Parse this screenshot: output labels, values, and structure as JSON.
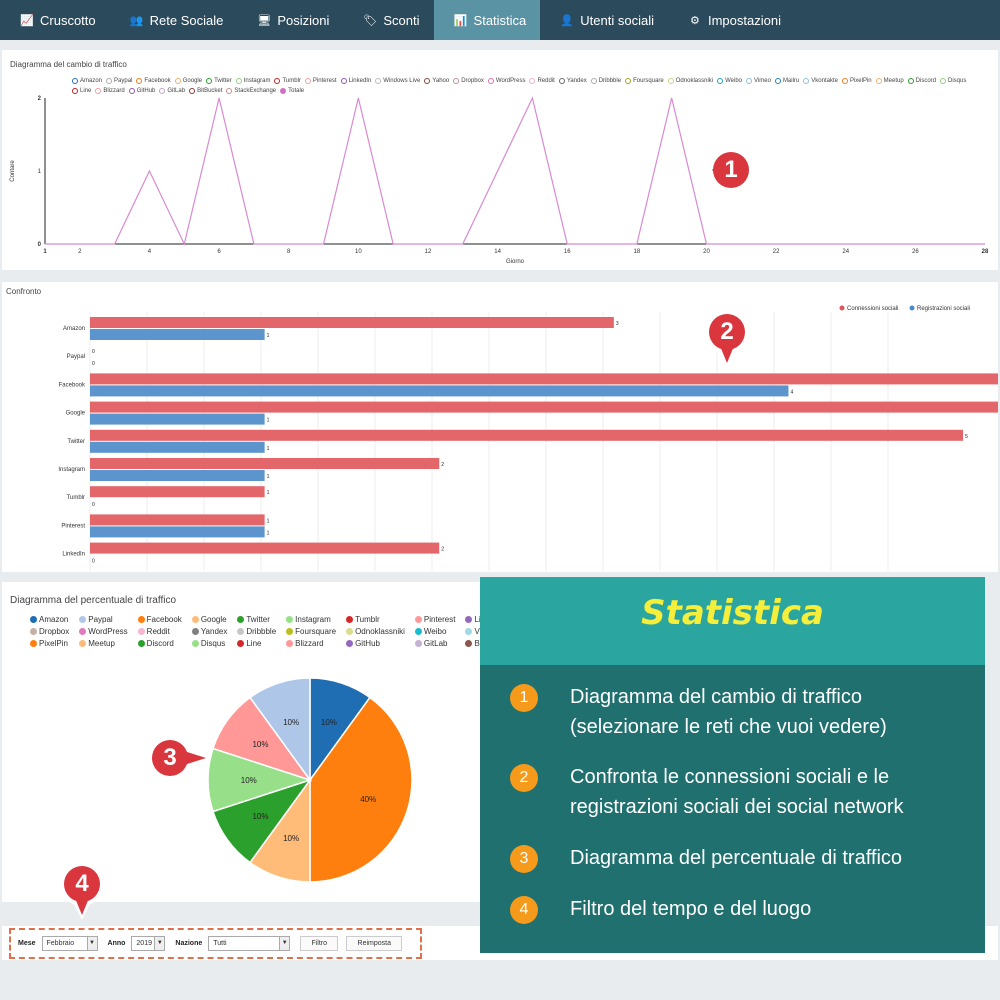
{
  "nav": {
    "items": [
      {
        "label": "Cruscotto",
        "icon": "chart-icon",
        "glyph": "📈",
        "active": false
      },
      {
        "label": "Rete Sociale",
        "icon": "users-icon",
        "glyph": "👥",
        "active": false
      },
      {
        "label": "Posizioni",
        "icon": "monitor-icon",
        "glyph": "🖥",
        "active": false
      },
      {
        "label": "Sconti",
        "icon": "tag-icon",
        "glyph": "🏷",
        "active": false
      },
      {
        "label": "Statistica",
        "icon": "bar-chart-icon",
        "glyph": "📊",
        "active": true
      },
      {
        "label": "Utenti sociali",
        "icon": "user-icon",
        "glyph": "👤",
        "active": false
      },
      {
        "label": "Impostazioni",
        "icon": "gear-icon",
        "glyph": "⚙",
        "active": false
      }
    ]
  },
  "traffic": {
    "title": "Diagramma del cambio di traffico",
    "legend": [
      "Amazon",
      "Paypal",
      "Facebook",
      "Google",
      "Twitter",
      "Instagram",
      "Tumblr",
      "Pinterest",
      "LinkedIn",
      "Windows Live",
      "Yahoo",
      "Dropbox",
      "WordPress",
      "Reddit",
      "Yandex",
      "Dribbble",
      "Foursquare",
      "Odnoklassniki",
      "Weibo",
      "Vimeo",
      "Mailru",
      "Vkontakte",
      "PixelPin",
      "Meetup",
      "Discord",
      "Disqus",
      "Line",
      "Blizzard",
      "GitHub",
      "GitLab",
      "BitBucket",
      "StackExchange",
      "Totale"
    ],
    "legend_colors": [
      "#1f6db3",
      "#aaaaaa",
      "#f07c1a",
      "#f0b070",
      "#2a9a2a",
      "#90d080",
      "#c02020",
      "#f0a0a0",
      "#8a5ab0",
      "#bbbbbb",
      "#7a4a3a",
      "#c09090",
      "#e070b0",
      "#f0b0c0",
      "#666666",
      "#aaaaaa",
      "#a0a020",
      "#d0d080",
      "#20a0c0",
      "#90c0e0",
      "#2080c0",
      "#90c0e0",
      "#f07c1a",
      "#f0b070",
      "#2a9a2a",
      "#90d080",
      "#c02020",
      "#f0a0a0",
      "#8a5ab0",
      "#c0a0d0",
      "#8a3a3a",
      "#c09090",
      "#d070c0"
    ]
  },
  "compare": {
    "title": "Confronto",
    "legend": [
      {
        "label": "Connessioni sociali",
        "color": "#e0555a"
      },
      {
        "label": "Registrazioni sociali",
        "color": "#3a80c0"
      }
    ]
  },
  "pie": {
    "title": "Diagramma del percentuale di traffico",
    "legend": [
      {
        "label": "Amazon",
        "color": "#1f6db3"
      },
      {
        "label": "Paypal",
        "color": "#aec7e8"
      },
      {
        "label": "Facebook",
        "color": "#ff7f0e"
      },
      {
        "label": "Google",
        "color": "#ffbb78"
      },
      {
        "label": "Twitter",
        "color": "#2ca02c"
      },
      {
        "label": "Instagram",
        "color": "#98df8a"
      },
      {
        "label": "Tumblr",
        "color": "#d62728"
      },
      {
        "label": "Pinterest",
        "color": "#ff9896"
      },
      {
        "label": "LinkedIn",
        "color": "#9467bd"
      },
      {
        "label": "Dropbox",
        "color": "#c5b0a5"
      },
      {
        "label": "WordPress",
        "color": "#e377c2"
      },
      {
        "label": "Reddit",
        "color": "#f7b6d2"
      },
      {
        "label": "Yandex",
        "color": "#7f7f7f"
      },
      {
        "label": "Dribbble",
        "color": "#c7c7c7"
      },
      {
        "label": "Foursquare",
        "color": "#bcbd22"
      },
      {
        "label": "Odnoklassniki",
        "color": "#dbdb8d"
      },
      {
        "label": "Weibo",
        "color": "#17becf"
      },
      {
        "label": "Vimeo",
        "color": "#9edae5"
      },
      {
        "label": "PixelPin",
        "color": "#ff7f0e"
      },
      {
        "label": "Meetup",
        "color": "#ffbb78"
      },
      {
        "label": "Discord",
        "color": "#2ca02c"
      },
      {
        "label": "Disqus",
        "color": "#98df8a"
      },
      {
        "label": "Line",
        "color": "#d62728"
      },
      {
        "label": "Blizzard",
        "color": "#ff9896"
      },
      {
        "label": "GitHub",
        "color": "#9467bd"
      },
      {
        "label": "GitLab",
        "color": "#c5b0d5"
      },
      {
        "label": "BitBucket",
        "color": "#8c564b"
      }
    ]
  },
  "filter": {
    "month_label": "Mese",
    "month_value": "Febbraio",
    "year_label": "Anno",
    "year_value": "2019",
    "country_label": "Nazione",
    "country_value": "Tutti",
    "filter_button": "Filtro",
    "reset_button": "Reimposta"
  },
  "info": {
    "title": "Statistica",
    "items": [
      {
        "num": "1",
        "text": "Diagramma del cambio di traffico (selezionare le reti che vuoi vedere)"
      },
      {
        "num": "2",
        "text": "Confronta le connessioni sociali e le registrazioni sociali dei social network"
      },
      {
        "num": "3",
        "text": "Diagramma del percentuale di traffico"
      },
      {
        "num": "4",
        "text": "Filtro del tempo e del luogo"
      }
    ]
  },
  "markers": [
    "1",
    "2",
    "3",
    "4"
  ],
  "chart_data": [
    {
      "type": "line",
      "title": "Diagramma del cambio di traffico",
      "xlabel": "Giorno",
      "ylabel": "Contare",
      "x": [
        1,
        2,
        3,
        4,
        5,
        6,
        7,
        8,
        9,
        10,
        11,
        12,
        13,
        14,
        15,
        16,
        17,
        18,
        19,
        20,
        21,
        22,
        23,
        24,
        25,
        26,
        27,
        28
      ],
      "series": [
        {
          "name": "Totale",
          "values": [
            0,
            0,
            0,
            1,
            0,
            2,
            0,
            0,
            0,
            2,
            0,
            0,
            0,
            1,
            2,
            0,
            0,
            0,
            2,
            0,
            0,
            0,
            0,
            0,
            0,
            0,
            0,
            0
          ]
        }
      ],
      "xticks": [
        1,
        2,
        4,
        6,
        8,
        10,
        12,
        14,
        16,
        18,
        20,
        22,
        24,
        26,
        28
      ],
      "yticks": [
        0,
        1,
        2
      ],
      "ylim": [
        0,
        2
      ],
      "xlim": [
        1,
        28
      ],
      "color": "#d88ad0"
    },
    {
      "type": "bar",
      "title": "Confronto",
      "categories": [
        "Amazon",
        "Paypal",
        "Facebook",
        "Google",
        "Twitter",
        "Instagram",
        "Tumblr",
        "Pinterest",
        "LinkedIn"
      ],
      "series": [
        {
          "name": "Connessioni sociali",
          "values": [
            3,
            0,
            null,
            null,
            5,
            2,
            1,
            1,
            2
          ],
          "color": "#e0555a"
        },
        {
          "name": "Registrazioni sociali",
          "values": [
            1,
            0,
            4,
            1,
            1,
            1,
            0,
            1,
            0
          ],
          "color": "#4a8ac8"
        }
      ],
      "value_labels": [
        [
          "3",
          "0",
          "",
          "",
          "5",
          "2",
          "1",
          "1",
          "2"
        ],
        [
          "1",
          "0",
          "4",
          "1",
          "1",
          "1",
          "0",
          "1",
          "0"
        ]
      ],
      "xlim": [
        0,
        5.2
      ],
      "legend": "top-right"
    },
    {
      "type": "pie",
      "title": "Diagramma del percentuale di traffico",
      "slices": [
        {
          "label": "Amazon",
          "value": 10,
          "text": "10%",
          "color": "#1f6db3"
        },
        {
          "label": "Facebook",
          "value": 40,
          "text": "40%",
          "color": "#ff7f0e"
        },
        {
          "label": "Google",
          "value": 10,
          "text": "10%",
          "color": "#ffbb78"
        },
        {
          "label": "Twitter",
          "value": 10,
          "text": "10%",
          "color": "#2ca02c"
        },
        {
          "label": "Instagram",
          "value": 10,
          "text": "10%",
          "color": "#98df8a"
        },
        {
          "label": "Pinterest",
          "value": 10,
          "text": "10%",
          "color": "#ff9896"
        },
        {
          "label": "Paypal",
          "value": 10,
          "text": "10%",
          "color": "#aec7e8"
        }
      ]
    }
  ]
}
